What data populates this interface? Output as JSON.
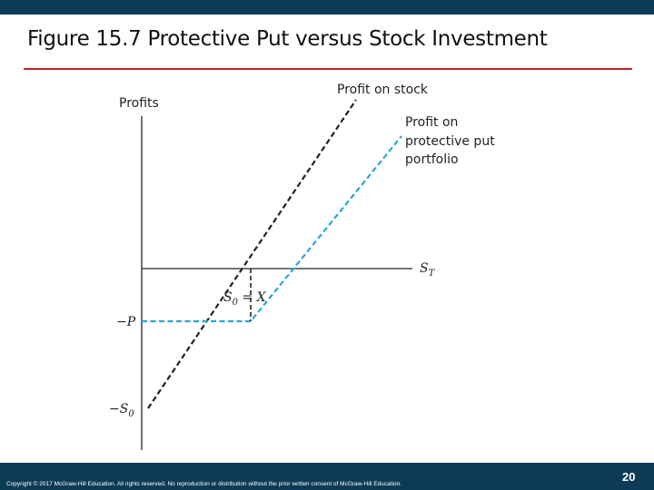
{
  "slide": {
    "title": "Figure 15.7 Protective Put versus Stock Investment",
    "footer_text": "Copyright © 2017 McGraw-Hill Education. All rights reserved. No reproduction or distribution without the prior written consent of McGraw-Hill Education.",
    "page_number": "20"
  },
  "diagram": {
    "y_axis_label": "Profits",
    "x_axis_label": "S",
    "x_axis_label_sub": "T",
    "stock_label": "Profit on stock",
    "put_label_lines": [
      "Profit on",
      "protective put",
      "portfolio"
    ],
    "strike_label": "S",
    "strike_label_sub": "0",
    "strike_label_rest": " = X",
    "neg_p_label": "−P",
    "neg_s0_label": "−S",
    "neg_s0_sub": "0",
    "colors": {
      "stock_line": "#222222",
      "put_line": "#2aa6d6",
      "axes": "#222222"
    }
  }
}
